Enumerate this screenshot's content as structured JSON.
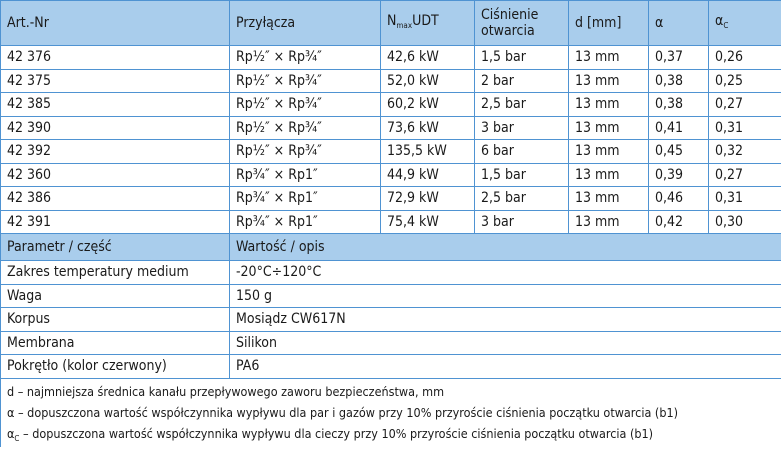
{
  "main_table": {
    "headers": {
      "art_nr": "Art.-Nr",
      "przylacza": "Przyłącza",
      "nmax_n": "N",
      "nmax_sub": "max",
      "nmax_rest": "UDT",
      "cisnienie_line1": "Ciśnienie",
      "cisnienie_line2": "otwarcia",
      "d": "d [mm]",
      "alpha": "α",
      "alpha_c": "α",
      "alpha_c_sub": "C"
    },
    "rows": [
      [
        "42 376",
        "Rp½″ × Rp¾″",
        "42,6 kW",
        "1,5 bar",
        "13 mm",
        "0,37",
        "0,26"
      ],
      [
        "42 375",
        "Rp½″ × Rp¾″",
        "52,0 kW",
        "2 bar",
        "13 mm",
        "0,38",
        "0,25"
      ],
      [
        "42 385",
        "Rp½″ × Rp¾″",
        "60,2 kW",
        "2,5 bar",
        "13 mm",
        "0,38",
        "0,27"
      ],
      [
        "42 390",
        "Rp½″ × Rp¾″",
        "73,6 kW",
        "3 bar",
        "13 mm",
        "0,41",
        "0,31"
      ],
      [
        "42 392",
        "Rp½″ × Rp¾″",
        "135,5 kW",
        "6 bar",
        "13 mm",
        "0,45",
        "0,32"
      ],
      [
        "42 360",
        "Rp¾″ × Rp1″",
        "44,9 kW",
        "1,5 bar",
        "13 mm",
        "0,39",
        "0,27"
      ],
      [
        "42 386",
        "Rp¾″ × Rp1″",
        "72,9 kW",
        "2,5 bar",
        "13 mm",
        "0,46",
        "0,31"
      ],
      [
        "42 391",
        "Rp¾″ × Rp1″",
        "75,4 kW",
        "3 bar",
        "13 mm",
        "0,42",
        "0,30"
      ]
    ]
  },
  "params_table": {
    "headers": {
      "param": "Parametr / część",
      "value": "Wartość / opis"
    },
    "rows": [
      [
        "Zakres temperatury medium",
        "-20°C÷120°C"
      ],
      [
        "Waga",
        "150 g"
      ],
      [
        "Korpus",
        "Mosiądz CW617N"
      ],
      [
        "Membrana",
        "Silikon"
      ],
      [
        "Pokrętło (kolor czerwony)",
        "PA6"
      ]
    ]
  },
  "notes": {
    "d": "d – najmniejsza średnica kanału przepływowego zaworu bezpieczeństwa, mm",
    "alpha": "α – dopuszczona wartość współczynnika wypływu dla par i gazów przy 10% przyroście ciśnienia początku otwarcia (b1)",
    "alpha_c_symbol": "α",
    "alpha_c_sub": "C",
    "alpha_c_text": " – dopuszczona wartość współczynnika wypływu dla cieczy przy 10% przyroście ciśnienia początku otwarcia (b1)"
  },
  "colors": {
    "header_bg": "#a9cdec",
    "border": "#4f93d2"
  }
}
